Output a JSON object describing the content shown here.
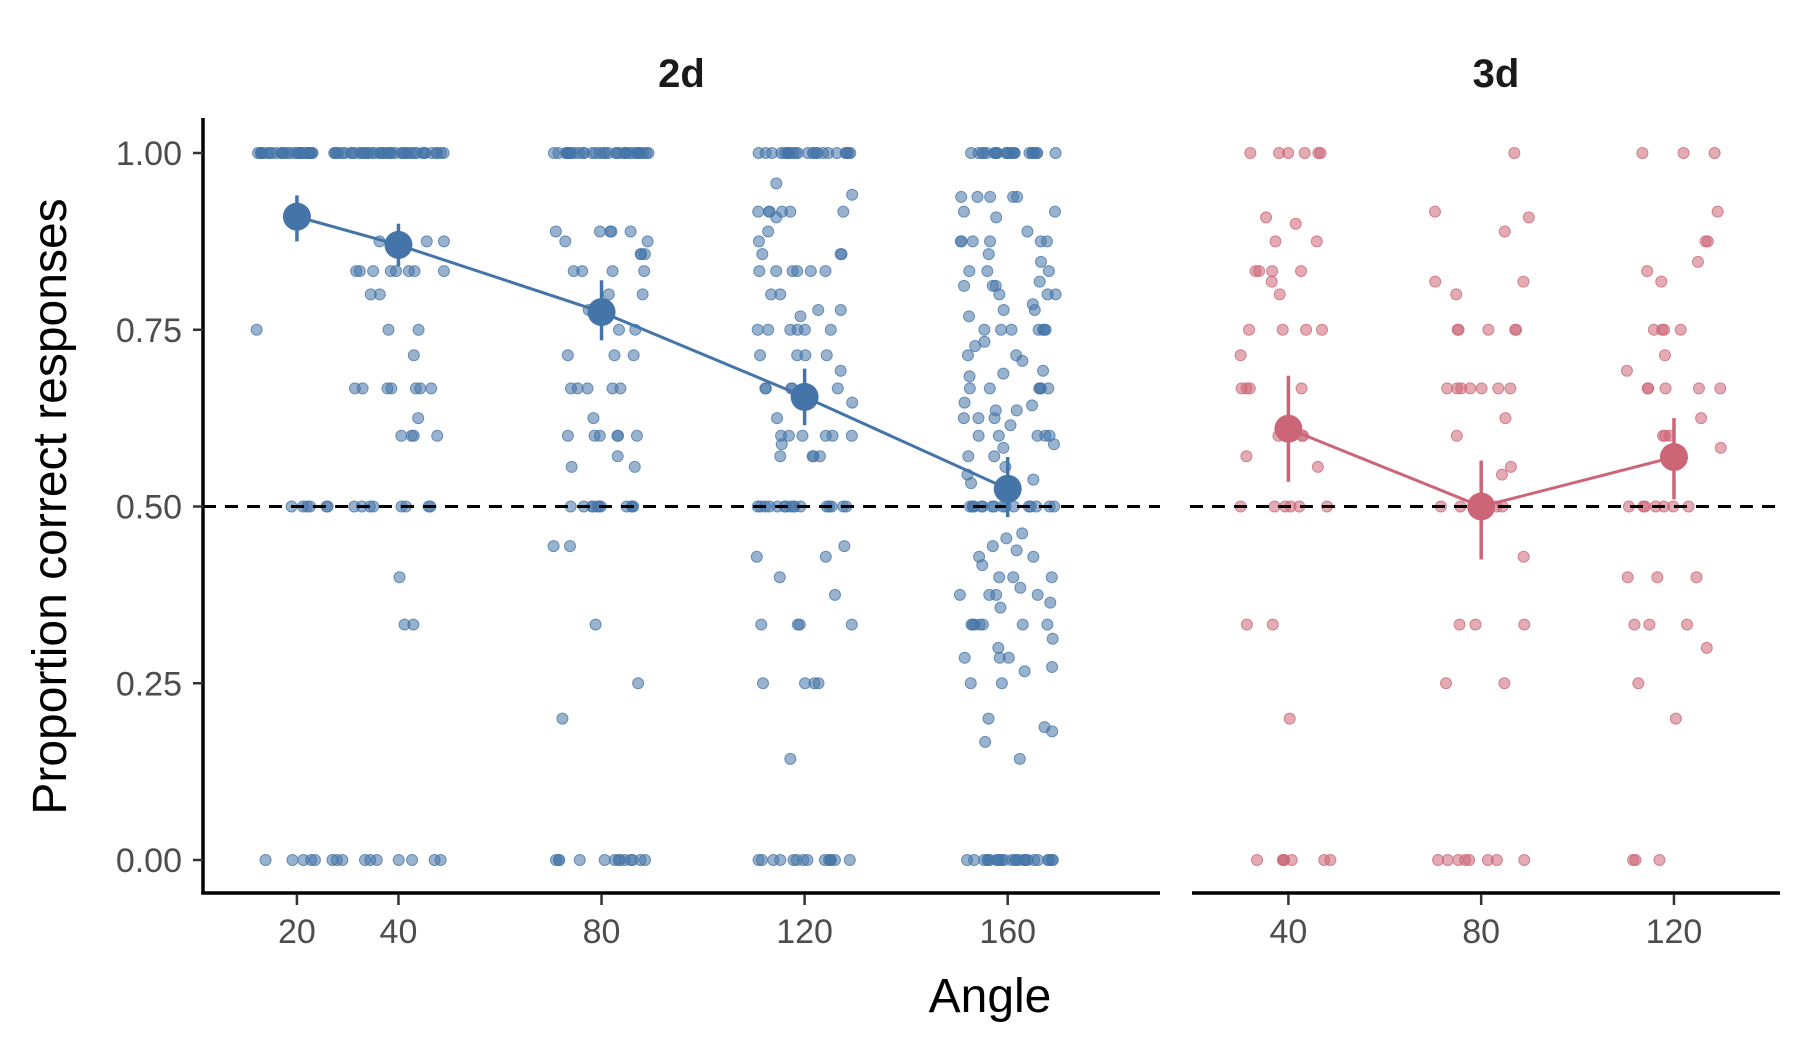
{
  "chart_data": {
    "type": "scatter",
    "xlabel": "Angle",
    "ylabel": "Proportion correct responses",
    "ylim": [
      0,
      1
    ],
    "y_ticks": [
      0,
      0.25,
      0.5,
      0.75,
      1
    ],
    "y_tick_labels": [
      "0.00",
      "0.25",
      "0.50",
      "0.75",
      "1.00"
    ],
    "reference_line": {
      "y": 0.5,
      "style": "dashed",
      "color": "#000000"
    },
    "grid": false,
    "legend": "none",
    "facets": [
      {
        "title": "2d",
        "color": "#4575a8",
        "x_ticks": [
          20,
          40,
          80,
          120,
          160
        ],
        "x_tick_labels": [
          "20",
          "40",
          "80",
          "120",
          "160"
        ],
        "series": [
          {
            "x": [
              20,
              40,
              80,
              120,
              160
            ],
            "mean": [
              0.91,
              0.87,
              0.775,
              0.655,
              0.525
            ],
            "lower": [
              0.875,
              0.84,
              0.735,
              0.615,
              0.485
            ],
            "upper": [
              0.94,
              0.9,
              0.82,
              0.695,
              0.57
            ]
          }
        ],
        "raw_points": [
          {
            "x": 20,
            "values": [
              1,
              1,
              1,
              1,
              1,
              1,
              1,
              1,
              1,
              1,
              1,
              1,
              1,
              1,
              1,
              1,
              1,
              1,
              1,
              1,
              1,
              1,
              1,
              1,
              1,
              1,
              1,
              1,
              1,
              1,
              1,
              1,
              1,
              1,
              1,
              1,
              1,
              1,
              1,
              1,
              0.75,
              0.5,
              0.5,
              0.5,
              0.5,
              0.5,
              0.5,
              0,
              0,
              0,
              0,
              0,
              0,
              0,
              0
            ]
          },
          {
            "x": 40,
            "values": [
              1,
              1,
              1,
              1,
              1,
              1,
              1,
              1,
              1,
              1,
              1,
              1,
              1,
              1,
              1,
              1,
              1,
              1,
              1,
              1,
              1,
              1,
              1,
              1,
              1,
              1,
              1,
              1,
              1,
              1,
              1,
              1,
              1,
              1,
              1,
              1,
              0.875,
              0.875,
              0.875,
              0.875,
              0.833,
              0.833,
              0.833,
              0.833,
              0.833,
              0.833,
              0.833,
              0.833,
              0.8,
              0.8,
              0.75,
              0.75,
              0.714,
              0.667,
              0.667,
              0.667,
              0.667,
              0.667,
              0.667,
              0.667,
              0.625,
              0.6,
              0.6,
              0.6,
              0.6,
              0.5,
              0.5,
              0.5,
              0.5,
              0.5,
              0.5,
              0.5,
              0.5,
              0.4,
              0.333,
              0.333,
              0,
              0,
              0,
              0,
              0,
              0,
              0
            ]
          },
          {
            "x": 80,
            "values": [
              1,
              1,
              1,
              1,
              1,
              1,
              1,
              1,
              1,
              1,
              1,
              1,
              1,
              1,
              1,
              1,
              1,
              1,
              1,
              1,
              1,
              1,
              1,
              1,
              1,
              1,
              1,
              1,
              1,
              1,
              1,
              1,
              1,
              1,
              1,
              1,
              0.889,
              0.889,
              0.889,
              0.889,
              0.889,
              0.875,
              0.875,
              0.857,
              0.857,
              0.857,
              0.833,
              0.833,
              0.833,
              0.833,
              0.8,
              0.8,
              0.778,
              0.778,
              0.778,
              0.75,
              0.75,
              0.714,
              0.714,
              0.714,
              0.667,
              0.667,
              0.667,
              0.667,
              0.667,
              0.625,
              0.6,
              0.6,
              0.6,
              0.6,
              0.6,
              0.6,
              0.571,
              0.556,
              0.556,
              0.5,
              0.5,
              0.5,
              0.5,
              0.5,
              0.5,
              0.5,
              0.5,
              0.5,
              0.5,
              0.5,
              0.444,
              0.444,
              0.333,
              0.25,
              0.2,
              0,
              0,
              0,
              0,
              0,
              0,
              0,
              0,
              0,
              0,
              0,
              0,
              0
            ]
          },
          {
            "x": 120,
            "values": [
              1,
              1,
              1,
              1,
              1,
              1,
              1,
              1,
              1,
              1,
              1,
              1,
              1,
              1,
              1,
              1,
              1,
              1,
              1,
              1,
              1,
              1,
              1,
              1,
              1,
              0.957,
              0.941,
              0.917,
              0.917,
              0.917,
              0.917,
              0.917,
              0.917,
              0.909,
              0.889,
              0.875,
              0.857,
              0.857,
              0.857,
              0.833,
              0.833,
              0.833,
              0.833,
              0.833,
              0.833,
              0.8,
              0.8,
              0.778,
              0.778,
              0.769,
              0.75,
              0.75,
              0.75,
              0.75,
              0.75,
              0.75,
              0.714,
              0.714,
              0.714,
              0.714,
              0.692,
              0.667,
              0.667,
              0.667,
              0.667,
              0.667,
              0.647,
              0.625,
              0.6,
              0.6,
              0.6,
              0.6,
              0.6,
              0.6,
              0.588,
              0.571,
              0.571,
              0.571,
              0.571,
              0.5,
              0.5,
              0.5,
              0.5,
              0.5,
              0.5,
              0.5,
              0.5,
              0.5,
              0.5,
              0.5,
              0.5,
              0.5,
              0.5,
              0.5,
              0.5,
              0.444,
              0.429,
              0.429,
              0.4,
              0.375,
              0.333,
              0.333,
              0.333,
              0.333,
              0.25,
              0.25,
              0.25,
              0.25,
              0.143,
              0,
              0,
              0,
              0,
              0,
              0,
              0,
              0,
              0,
              0,
              0,
              0,
              0,
              0
            ]
          },
          {
            "x": 160,
            "values": [
              1,
              1,
              1,
              1,
              1,
              1,
              1,
              1,
              1,
              1,
              1,
              1,
              1,
              1,
              1,
              1,
              1,
              1,
              1,
              1,
              1,
              1,
              1,
              0.938,
              0.938,
              0.938,
              0.938,
              0.938,
              0.917,
              0.917,
              0.909,
              0.889,
              0.875,
              0.875,
              0.875,
              0.875,
              0.875,
              0.875,
              0.857,
              0.846,
              0.833,
              0.833,
              0.833,
              0.818,
              0.812,
              0.812,
              0.812,
              0.8,
              0.8,
              0.8,
              0.786,
              0.778,
              0.778,
              0.769,
              0.75,
              0.75,
              0.75,
              0.75,
              0.75,
              0.75,
              0.75,
              0.733,
              0.727,
              0.714,
              0.714,
              0.706,
              0.692,
              0.688,
              0.684,
              0.667,
              0.667,
              0.667,
              0.667,
              0.667,
              0.667,
              0.647,
              0.643,
              0.636,
              0.636,
              0.625,
              0.625,
              0.625,
              0.615,
              0.6,
              0.6,
              0.6,
              0.6,
              0.6,
              0.588,
              0.583,
              0.571,
              0.571,
              0.556,
              0.545,
              0.538,
              0.533,
              0.5,
              0.5,
              0.5,
              0.5,
              0.5,
              0.5,
              0.5,
              0.5,
              0.5,
              0.5,
              0.5,
              0.5,
              0.5,
              0.5,
              0.5,
              0.5,
              0.462,
              0.455,
              0.444,
              0.438,
              0.429,
              0.429,
              0.417,
              0.4,
              0.4,
              0.4,
              0.385,
              0.375,
              0.375,
              0.375,
              0.375,
              0.364,
              0.357,
              0.333,
              0.333,
              0.333,
              0.333,
              0.333,
              0.333,
              0.333,
              0.313,
              0.3,
              0.286,
              0.286,
              0.286,
              0.273,
              0.267,
              0.25,
              0.25,
              0.2,
              0.188,
              0.182,
              0.167,
              0.143,
              0,
              0,
              0,
              0,
              0,
              0,
              0,
              0,
              0,
              0,
              0,
              0,
              0,
              0,
              0,
              0,
              0,
              0,
              0,
              0,
              0,
              0,
              0,
              0,
              0
            ]
          }
        ]
      },
      {
        "title": "3d",
        "color": "#cc6677",
        "x_ticks": [
          40,
          80,
          120
        ],
        "x_tick_labels": [
          "40",
          "80",
          "120"
        ],
        "series": [
          {
            "x": [
              40,
              80,
              120
            ],
            "mean": [
              0.61,
              0.5,
              0.57
            ],
            "lower": [
              0.535,
              0.425,
              0.51
            ],
            "upper": [
              0.685,
              0.565,
              0.625
            ]
          }
        ],
        "raw_points": [
          {
            "x": 40,
            "values": [
              1,
              1,
              1,
              1,
              1,
              1,
              0.909,
              0.9,
              0.875,
              0.875,
              0.833,
              0.833,
              0.833,
              0.833,
              0.818,
              0.8,
              0.75,
              0.75,
              0.75,
              0.75,
              0.714,
              0.667,
              0.667,
              0.667,
              0.667,
              0.6,
              0.6,
              0.6,
              0.571,
              0.556,
              0.5,
              0.5,
              0.5,
              0.5,
              0.5,
              0.5,
              0.333,
              0.333,
              0.2,
              0,
              0,
              0,
              0,
              0,
              0,
              0
            ]
          },
          {
            "x": 80,
            "values": [
              1,
              0.917,
              0.909,
              0.889,
              0.818,
              0.818,
              0.8,
              0.75,
              0.75,
              0.75,
              0.75,
              0.75,
              0.667,
              0.667,
              0.667,
              0.667,
              0.667,
              0.667,
              0.667,
              0.625,
              0.6,
              0.556,
              0.545,
              0.5,
              0.5,
              0.5,
              0.5,
              0.5,
              0.429,
              0.333,
              0.333,
              0.333,
              0.25,
              0.25,
              0,
              0,
              0,
              0,
              0,
              0,
              0,
              0
            ]
          },
          {
            "x": 120,
            "values": [
              1,
              1,
              1,
              0.917,
              0.875,
              0.875,
              0.846,
              0.833,
              0.818,
              0.75,
              0.75,
              0.75,
              0.75,
              0.714,
              0.692,
              0.667,
              0.667,
              0.667,
              0.667,
              0.667,
              0.625,
              0.6,
              0.6,
              0.6,
              0.583,
              0.5,
              0.5,
              0.5,
              0.5,
              0.5,
              0.5,
              0.5,
              0.4,
              0.4,
              0.4,
              0.333,
              0.333,
              0.333,
              0.3,
              0.25,
              0.2,
              0,
              0,
              0
            ]
          }
        ]
      }
    ]
  }
}
